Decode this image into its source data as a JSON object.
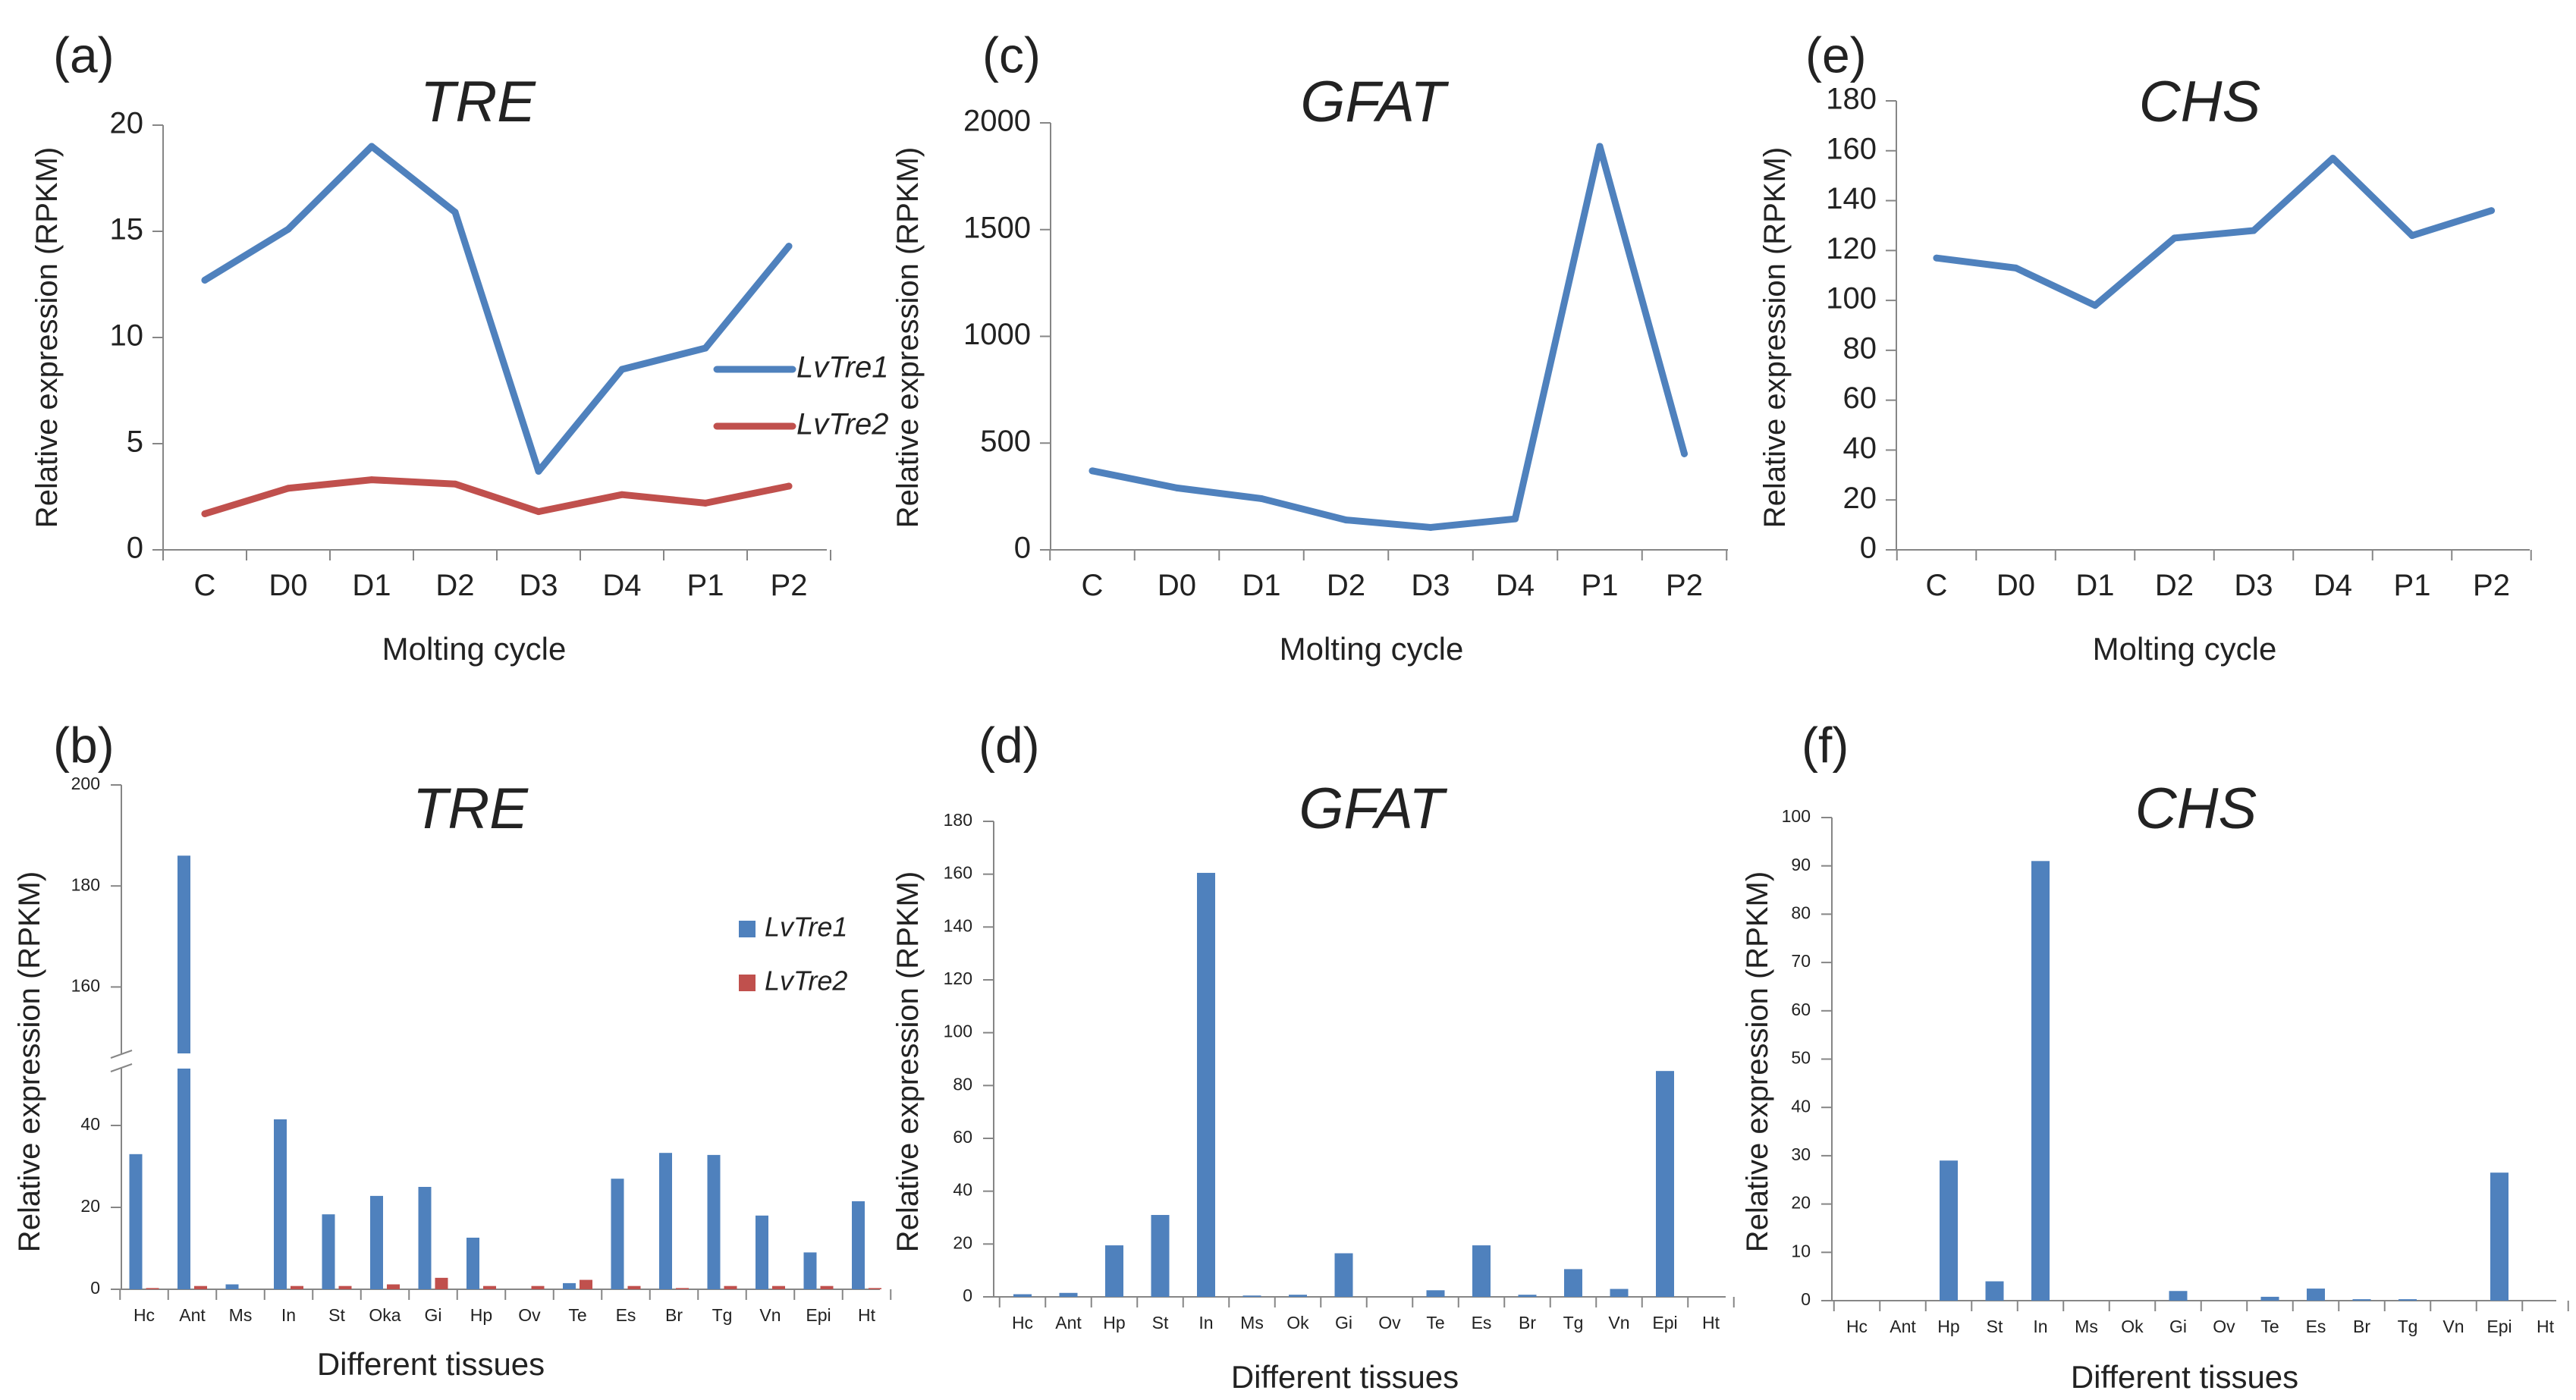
{
  "colors": {
    "LvTre1": "#4f81bd",
    "LvTre2": "#c0504d",
    "axis": "#868686"
  },
  "chart_data": [
    {
      "panel": "(a)",
      "type": "line",
      "title": "TRE",
      "xlabel": "Molting cycle",
      "ylabel": "Relative expression (RPKM)",
      "categories": [
        "C",
        "D0",
        "D1",
        "D2",
        "D3",
        "D4",
        "P1",
        "P2"
      ],
      "ylim": [
        0,
        20
      ],
      "yticks": [
        0,
        5,
        10,
        15,
        20
      ],
      "series": [
        {
          "name": "LvTre1",
          "color_key": "LvTre1",
          "values": [
            12.7,
            15.1,
            19.0,
            15.9,
            3.7,
            8.5,
            9.5,
            14.3
          ]
        },
        {
          "name": "LvTre2",
          "color_key": "LvTre2",
          "values": [
            1.7,
            2.9,
            3.3,
            3.1,
            1.8,
            2.6,
            2.2,
            3.0
          ]
        }
      ],
      "legend": [
        "LvTre1",
        "LvTre2"
      ]
    },
    {
      "panel": "(c)",
      "type": "line",
      "title": "GFAT",
      "xlabel": "Molting cycle",
      "ylabel": "Relative expression (RPKM)",
      "categories": [
        "C",
        "D0",
        "D1",
        "D2",
        "D3",
        "D4",
        "P1",
        "P2"
      ],
      "ylim": [
        0,
        2000
      ],
      "yticks": [
        0,
        500,
        1000,
        1500,
        2000
      ],
      "series": [
        {
          "name": "GFAT",
          "color_key": "LvTre1",
          "values": [
            370,
            290,
            240,
            140,
            105,
            145,
            1890,
            450
          ]
        }
      ]
    },
    {
      "panel": "(e)",
      "type": "line",
      "title": "CHS",
      "xlabel": "Molting cycle",
      "ylabel": "Relative expression (RPKM)",
      "categories": [
        "C",
        "D0",
        "D1",
        "D2",
        "D3",
        "D4",
        "P1",
        "P2"
      ],
      "ylim": [
        0,
        180
      ],
      "yticks": [
        0,
        20,
        40,
        60,
        80,
        100,
        120,
        140,
        160,
        180
      ],
      "series": [
        {
          "name": "CHS",
          "color_key": "LvTre1",
          "values": [
            117,
            113,
            98,
            125,
            128,
            157,
            126,
            136
          ]
        }
      ]
    },
    {
      "panel": "(b)",
      "type": "bar",
      "title": "TRE",
      "xlabel": "Different tissues",
      "ylabel": "Relative expression (RPKM)",
      "categories": [
        "Hc",
        "Ant",
        "Ms",
        "In",
        "St",
        "Oka",
        "Gi",
        "Hp",
        "Ov",
        "Te",
        "Es",
        "Br",
        "Tg",
        "Vn",
        "Epi",
        "Ht"
      ],
      "broken_axis": {
        "lower": [
          0,
          50
        ],
        "upper": [
          150,
          200
        ]
      },
      "yticks": [
        0,
        20,
        40,
        160,
        180,
        200
      ],
      "series": [
        {
          "name": "LvTre1",
          "color_key": "LvTre1",
          "values": [
            33,
            186,
            1.2,
            41.5,
            18.3,
            22.8,
            25,
            12.6,
            0,
            1.5,
            27,
            33.3,
            32.8,
            18,
            9,
            21.5
          ]
        },
        {
          "name": "LvTre2",
          "color_key": "LvTre2",
          "values": [
            0.3,
            0.8,
            0,
            0.8,
            0.8,
            1.2,
            2.8,
            0.8,
            0.8,
            2.3,
            0.8,
            0.3,
            0.8,
            0.8,
            0.8,
            0.3
          ]
        }
      ],
      "legend": [
        "LvTre1",
        "LvTre2"
      ]
    },
    {
      "panel": "(d)",
      "type": "bar",
      "title": "GFAT",
      "xlabel": "Different tissues",
      "ylabel": "Relative expression (RPKM)",
      "categories": [
        "Hc",
        "Ant",
        "Hp",
        "St",
        "In",
        "Ms",
        "Ok",
        "Gi",
        "Ov",
        "Te",
        "Es",
        "Br",
        "Tg",
        "Vn",
        "Epi",
        "Ht"
      ],
      "ylim": [
        0,
        180
      ],
      "yticks": [
        0,
        20,
        40,
        60,
        80,
        100,
        120,
        140,
        160,
        180
      ],
      "series": [
        {
          "name": "GFAT",
          "color_key": "LvTre1",
          "values": [
            1,
            1.5,
            19.5,
            31,
            160.5,
            0.5,
            0.8,
            16.5,
            0,
            2.5,
            19.5,
            0.8,
            10.5,
            3,
            85.5,
            0
          ]
        }
      ]
    },
    {
      "panel": "(f)",
      "type": "bar",
      "title": "CHS",
      "xlabel": "Different tissues",
      "ylabel": "Relative expression (RPKM)",
      "categories": [
        "Hc",
        "Ant",
        "Hp",
        "St",
        "In",
        "Ms",
        "Ok",
        "Gi",
        "Ov",
        "Te",
        "Es",
        "Br",
        "Tg",
        "Vn",
        "Epi",
        "Ht"
      ],
      "ylim": [
        0,
        100
      ],
      "yticks": [
        0,
        10,
        20,
        30,
        40,
        50,
        60,
        70,
        80,
        90,
        100
      ],
      "series": [
        {
          "name": "CHS",
          "color_key": "LvTre1",
          "values": [
            0,
            0,
            29,
            4,
            91,
            0,
            0,
            2,
            0,
            0.8,
            2.5,
            0.3,
            0.3,
            0,
            26.5,
            0
          ]
        }
      ]
    }
  ]
}
